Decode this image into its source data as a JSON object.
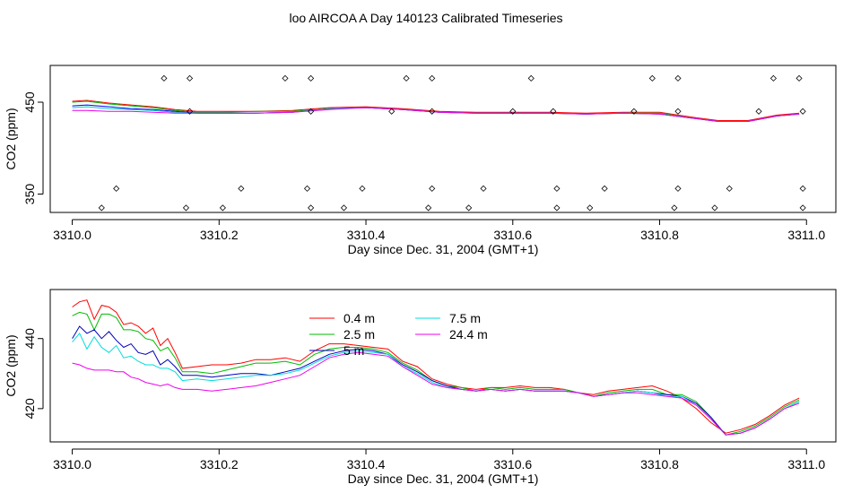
{
  "title": "loo AIRCOA A  Day 140123  Calibrated Timeseries",
  "chart_data": [
    {
      "type": "scatter",
      "xlabel": "Day since Dec. 31, 2004 (GMT+1)",
      "ylabel": "CO2 (ppm)",
      "xlim": [
        3309.97,
        3311.04
      ],
      "ylim": [
        330,
        490
      ],
      "xticks": [
        "3310.0",
        "3310.2",
        "3310.4",
        "3310.6",
        "3310.8",
        "3311.0"
      ],
      "yticks": [
        "350",
        "450"
      ],
      "grid": false,
      "legend": "none",
      "calibration_points": {
        "x": [
          3310.04,
          3310.06,
          3310.125,
          3310.155,
          3310.16,
          3310.16,
          3310.205,
          3310.23,
          3310.29,
          3310.32,
          3310.325,
          3310.325,
          3310.325,
          3310.37,
          3310.395,
          3310.435,
          3310.455,
          3310.485,
          3310.49,
          3310.49,
          3310.49,
          3310.54,
          3310.56,
          3310.6,
          3310.625,
          3310.655,
          3310.66,
          3310.66,
          3310.705,
          3310.725,
          3310.765,
          3310.79,
          3310.82,
          3310.825,
          3310.825,
          3310.825,
          3310.875,
          3310.895,
          3310.935,
          3310.955,
          3310.99,
          3310.995,
          3310.995,
          3310.995
        ],
        "y": [
          335,
          356,
          476,
          335,
          440,
          476,
          335,
          356,
          476,
          356,
          440,
          476,
          335,
          335,
          356,
          440,
          476,
          335,
          356,
          440,
          476,
          335,
          356,
          440,
          476,
          440,
          356,
          335,
          335,
          356,
          440,
          476,
          335,
          440,
          356,
          476,
          335,
          356,
          440,
          476,
          476,
          440,
          356,
          335
        ]
      },
      "series": [
        {
          "color": "#ff0000",
          "x": [
            3310.0,
            3310.02,
            3310.05,
            3310.08,
            3310.11,
            3310.14,
            3310.17,
            3310.2,
            3310.25,
            3310.3,
            3310.35,
            3310.4,
            3310.45,
            3310.5,
            3310.55,
            3310.6,
            3310.65,
            3310.7,
            3310.75,
            3310.8,
            3310.85,
            3310.88,
            3310.92,
            3310.96,
            3310.99
          ],
          "y": [
            451,
            452,
            449,
            447,
            445,
            442,
            440,
            440,
            440,
            441,
            444,
            445,
            443,
            440,
            439,
            439,
            439,
            438,
            439,
            439,
            433,
            430,
            430,
            436,
            438
          ]
        },
        {
          "color": "#00bb00",
          "x": [
            3310.0,
            3310.02,
            3310.05,
            3310.08,
            3310.11,
            3310.14,
            3310.17,
            3310.2,
            3310.25,
            3310.3,
            3310.35,
            3310.4,
            3310.45,
            3310.5,
            3310.55,
            3310.6,
            3310.65,
            3310.7,
            3310.75,
            3310.8,
            3310.85,
            3310.88,
            3310.92,
            3310.96,
            3310.99
          ],
          "y": [
            450,
            451,
            448,
            446,
            444,
            441,
            439,
            439,
            440,
            440,
            443,
            444,
            442,
            439,
            438,
            438,
            438,
            437,
            438,
            438,
            432,
            429,
            429,
            435,
            437
          ]
        },
        {
          "color": "#0000ff",
          "x": [
            3310.0,
            3310.02,
            3310.05,
            3310.08,
            3310.11,
            3310.14,
            3310.17,
            3310.2,
            3310.25,
            3310.3,
            3310.35,
            3310.4,
            3310.45,
            3310.5,
            3310.55,
            3310.6,
            3310.65,
            3310.7,
            3310.75,
            3310.8,
            3310.85,
            3310.88,
            3310.92,
            3310.96,
            3310.99
          ],
          "y": [
            446,
            447,
            445,
            443,
            442,
            440,
            438,
            438,
            438,
            439,
            443,
            444,
            442,
            439,
            438,
            438,
            438,
            437,
            438,
            437,
            432,
            429,
            429,
            435,
            437
          ]
        },
        {
          "color": "#00cccc",
          "x": [
            3310.0,
            3310.02,
            3310.05,
            3310.08,
            3310.11,
            3310.14,
            3310.17,
            3310.2,
            3310.25,
            3310.3,
            3310.35,
            3310.4,
            3310.45,
            3310.5,
            3310.55,
            3310.6,
            3310.65,
            3310.7,
            3310.75,
            3310.8,
            3310.85,
            3310.88,
            3310.92,
            3310.96,
            3310.99
          ],
          "y": [
            444,
            445,
            443,
            442,
            441,
            439,
            438,
            438,
            438,
            439,
            443,
            444,
            442,
            439,
            438,
            438,
            438,
            437,
            438,
            437,
            432,
            429,
            429,
            435,
            437
          ]
        },
        {
          "color": "#ee00ee",
          "x": [
            3310.0,
            3310.02,
            3310.05,
            3310.08,
            3310.11,
            3310.14,
            3310.17,
            3310.2,
            3310.25,
            3310.3,
            3310.35,
            3310.4,
            3310.45,
            3310.5,
            3310.55,
            3310.6,
            3310.65,
            3310.7,
            3310.75,
            3310.8,
            3310.85,
            3310.88,
            3310.92,
            3310.96,
            3310.99
          ],
          "y": [
            441,
            441,
            440,
            440,
            439,
            438,
            438,
            438,
            438,
            439,
            442,
            444,
            442,
            439,
            438,
            438,
            438,
            437,
            438,
            437,
            432,
            429,
            429,
            435,
            437
          ]
        }
      ]
    },
    {
      "type": "line",
      "xlabel": "Day since Dec. 31, 2004 (GMT+1)",
      "ylabel": "CO2 (ppm)",
      "xlim": [
        3309.97,
        3311.04
      ],
      "ylim": [
        410.5,
        454
      ],
      "xticks": [
        "3310.0",
        "3310.2",
        "3310.4",
        "3310.6",
        "3310.8",
        "3311.0"
      ],
      "yticks": [
        "420",
        "440"
      ],
      "grid": false,
      "legend": "top-center",
      "x": [
        3310.0,
        3310.01,
        3310.02,
        3310.03,
        3310.04,
        3310.05,
        3310.06,
        3310.07,
        3310.08,
        3310.09,
        3310.1,
        3310.11,
        3310.12,
        3310.13,
        3310.14,
        3310.15,
        3310.17,
        3310.19,
        3310.21,
        3310.23,
        3310.25,
        3310.27,
        3310.29,
        3310.31,
        3310.33,
        3310.35,
        3310.37,
        3310.39,
        3310.41,
        3310.43,
        3310.45,
        3310.47,
        3310.49,
        3310.51,
        3310.53,
        3310.55,
        3310.57,
        3310.59,
        3310.61,
        3310.63,
        3310.65,
        3310.67,
        3310.69,
        3310.71,
        3310.73,
        3310.75,
        3310.77,
        3310.79,
        3310.81,
        3310.83,
        3310.85,
        3310.87,
        3310.89,
        3310.91,
        3310.93,
        3310.95,
        3310.97,
        3310.99
      ],
      "series": [
        {
          "name": "0.4 m",
          "color": "#ff0000",
          "values": [
            449.0,
            450.5,
            451.0,
            445.5,
            449.5,
            449.0,
            447.5,
            444.0,
            444.5,
            443.5,
            441.5,
            443.0,
            438.0,
            440.0,
            436.0,
            431.5,
            432.0,
            432.5,
            432.5,
            433.0,
            434.0,
            434.0,
            434.5,
            433.5,
            436.5,
            438.5,
            438.5,
            438.0,
            437.5,
            437.0,
            433.5,
            432.0,
            428.5,
            427.0,
            426.0,
            425.5,
            426.0,
            426.0,
            426.5,
            426.0,
            426.0,
            425.5,
            424.5,
            424.0,
            425.0,
            425.5,
            426.0,
            426.5,
            425.0,
            423.0,
            420.0,
            416.0,
            413.0,
            414.0,
            415.5,
            418.0,
            421.0,
            423.0
          ]
        },
        {
          "name": "2.5 m",
          "color": "#00bb00",
          "values": [
            446.5,
            447.5,
            447.0,
            442.5,
            447.0,
            447.0,
            446.0,
            442.5,
            442.5,
            442.0,
            440.0,
            439.5,
            436.5,
            437.5,
            434.5,
            430.5,
            430.5,
            430.0,
            431.0,
            432.0,
            433.0,
            433.0,
            433.5,
            432.5,
            435.5,
            437.0,
            437.5,
            437.5,
            437.0,
            436.0,
            433.0,
            431.0,
            428.0,
            426.5,
            426.0,
            425.0,
            426.0,
            425.5,
            426.0,
            425.5,
            425.5,
            425.5,
            424.5,
            423.5,
            424.5,
            425.0,
            425.5,
            425.5,
            424.0,
            424.0,
            422.0,
            417.5,
            412.5,
            413.5,
            415.0,
            417.5,
            420.5,
            422.5
          ]
        },
        {
          "name": "5 m",
          "color": "#0000bb",
          "values": [
            440.0,
            443.5,
            441.5,
            442.5,
            440.0,
            442.0,
            439.5,
            437.5,
            438.5,
            436.0,
            435.5,
            436.5,
            432.5,
            434.0,
            432.0,
            429.5,
            429.5,
            429.0,
            429.5,
            430.0,
            430.0,
            429.5,
            430.5,
            431.5,
            433.5,
            435.5,
            436.5,
            437.0,
            436.5,
            435.5,
            432.5,
            430.5,
            428.0,
            426.5,
            425.5,
            425.0,
            425.5,
            425.0,
            425.5,
            425.0,
            425.0,
            425.0,
            424.5,
            423.5,
            424.0,
            424.5,
            425.0,
            424.5,
            424.0,
            423.5,
            421.5,
            417.5,
            412.5,
            413.0,
            414.5,
            417.0,
            420.0,
            422.0
          ]
        },
        {
          "name": "7.5 m",
          "color": "#00dddd",
          "values": [
            439.0,
            441.5,
            437.0,
            440.5,
            437.5,
            436.0,
            438.0,
            434.5,
            435.0,
            433.5,
            432.5,
            432.5,
            431.5,
            431.5,
            430.5,
            428.0,
            428.5,
            428.0,
            428.5,
            429.0,
            429.5,
            429.5,
            430.0,
            431.0,
            433.0,
            435.0,
            436.0,
            436.5,
            436.0,
            435.5,
            432.0,
            430.0,
            427.5,
            426.0,
            425.5,
            425.0,
            425.5,
            425.0,
            425.5,
            425.0,
            425.0,
            425.0,
            424.5,
            423.5,
            424.0,
            424.5,
            425.0,
            424.5,
            423.5,
            423.5,
            421.0,
            417.0,
            412.5,
            413.0,
            414.5,
            417.0,
            420.0,
            422.0
          ]
        },
        {
          "name": "24.4 m",
          "color": "#ee00ee",
          "values": [
            433.0,
            432.5,
            431.5,
            431.0,
            431.0,
            431.0,
            430.5,
            430.5,
            429.0,
            428.5,
            427.5,
            427.0,
            426.5,
            427.0,
            426.0,
            425.5,
            425.5,
            425.0,
            425.5,
            426.0,
            426.5,
            427.5,
            428.5,
            429.5,
            432.0,
            434.5,
            435.5,
            436.0,
            435.5,
            435.0,
            432.0,
            429.5,
            427.0,
            426.0,
            425.5,
            425.0,
            425.5,
            425.0,
            425.5,
            425.0,
            425.0,
            425.0,
            424.5,
            423.5,
            424.0,
            424.5,
            424.5,
            424.0,
            423.5,
            423.0,
            421.0,
            417.0,
            412.5,
            413.0,
            414.5,
            417.0,
            420.0,
            421.5
          ]
        }
      ]
    }
  ]
}
